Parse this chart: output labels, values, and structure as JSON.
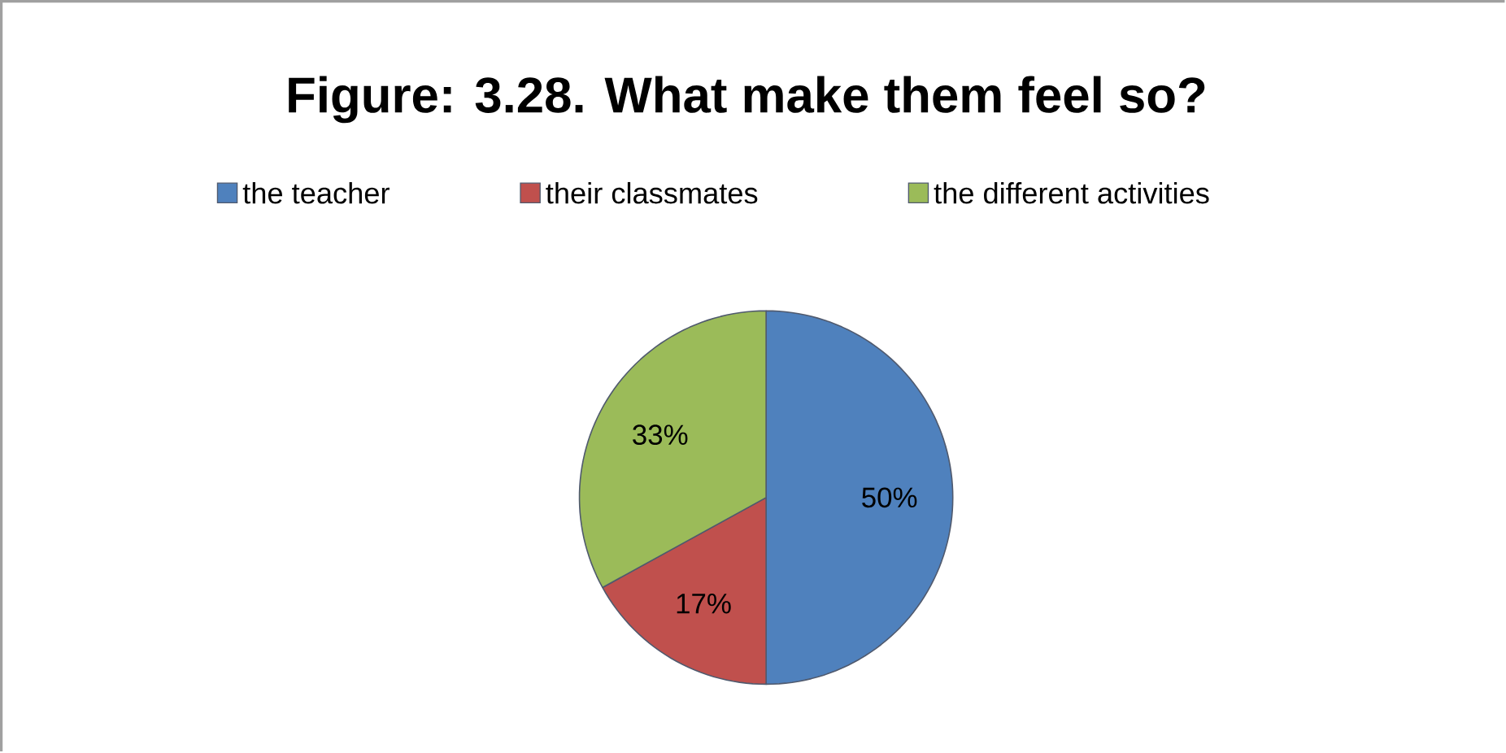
{
  "chart_data": {
    "type": "pie",
    "title": "Figure: 3.28. What make them feel so?",
    "categories": [
      "the teacher",
      "their classmates",
      "the different activities"
    ],
    "values": [
      50,
      17,
      33
    ],
    "colors": [
      "#4f81bd",
      "#c0504d",
      "#9bbb59"
    ],
    "value_labels": [
      "50%",
      "17%",
      "33%"
    ],
    "legend": "top"
  }
}
